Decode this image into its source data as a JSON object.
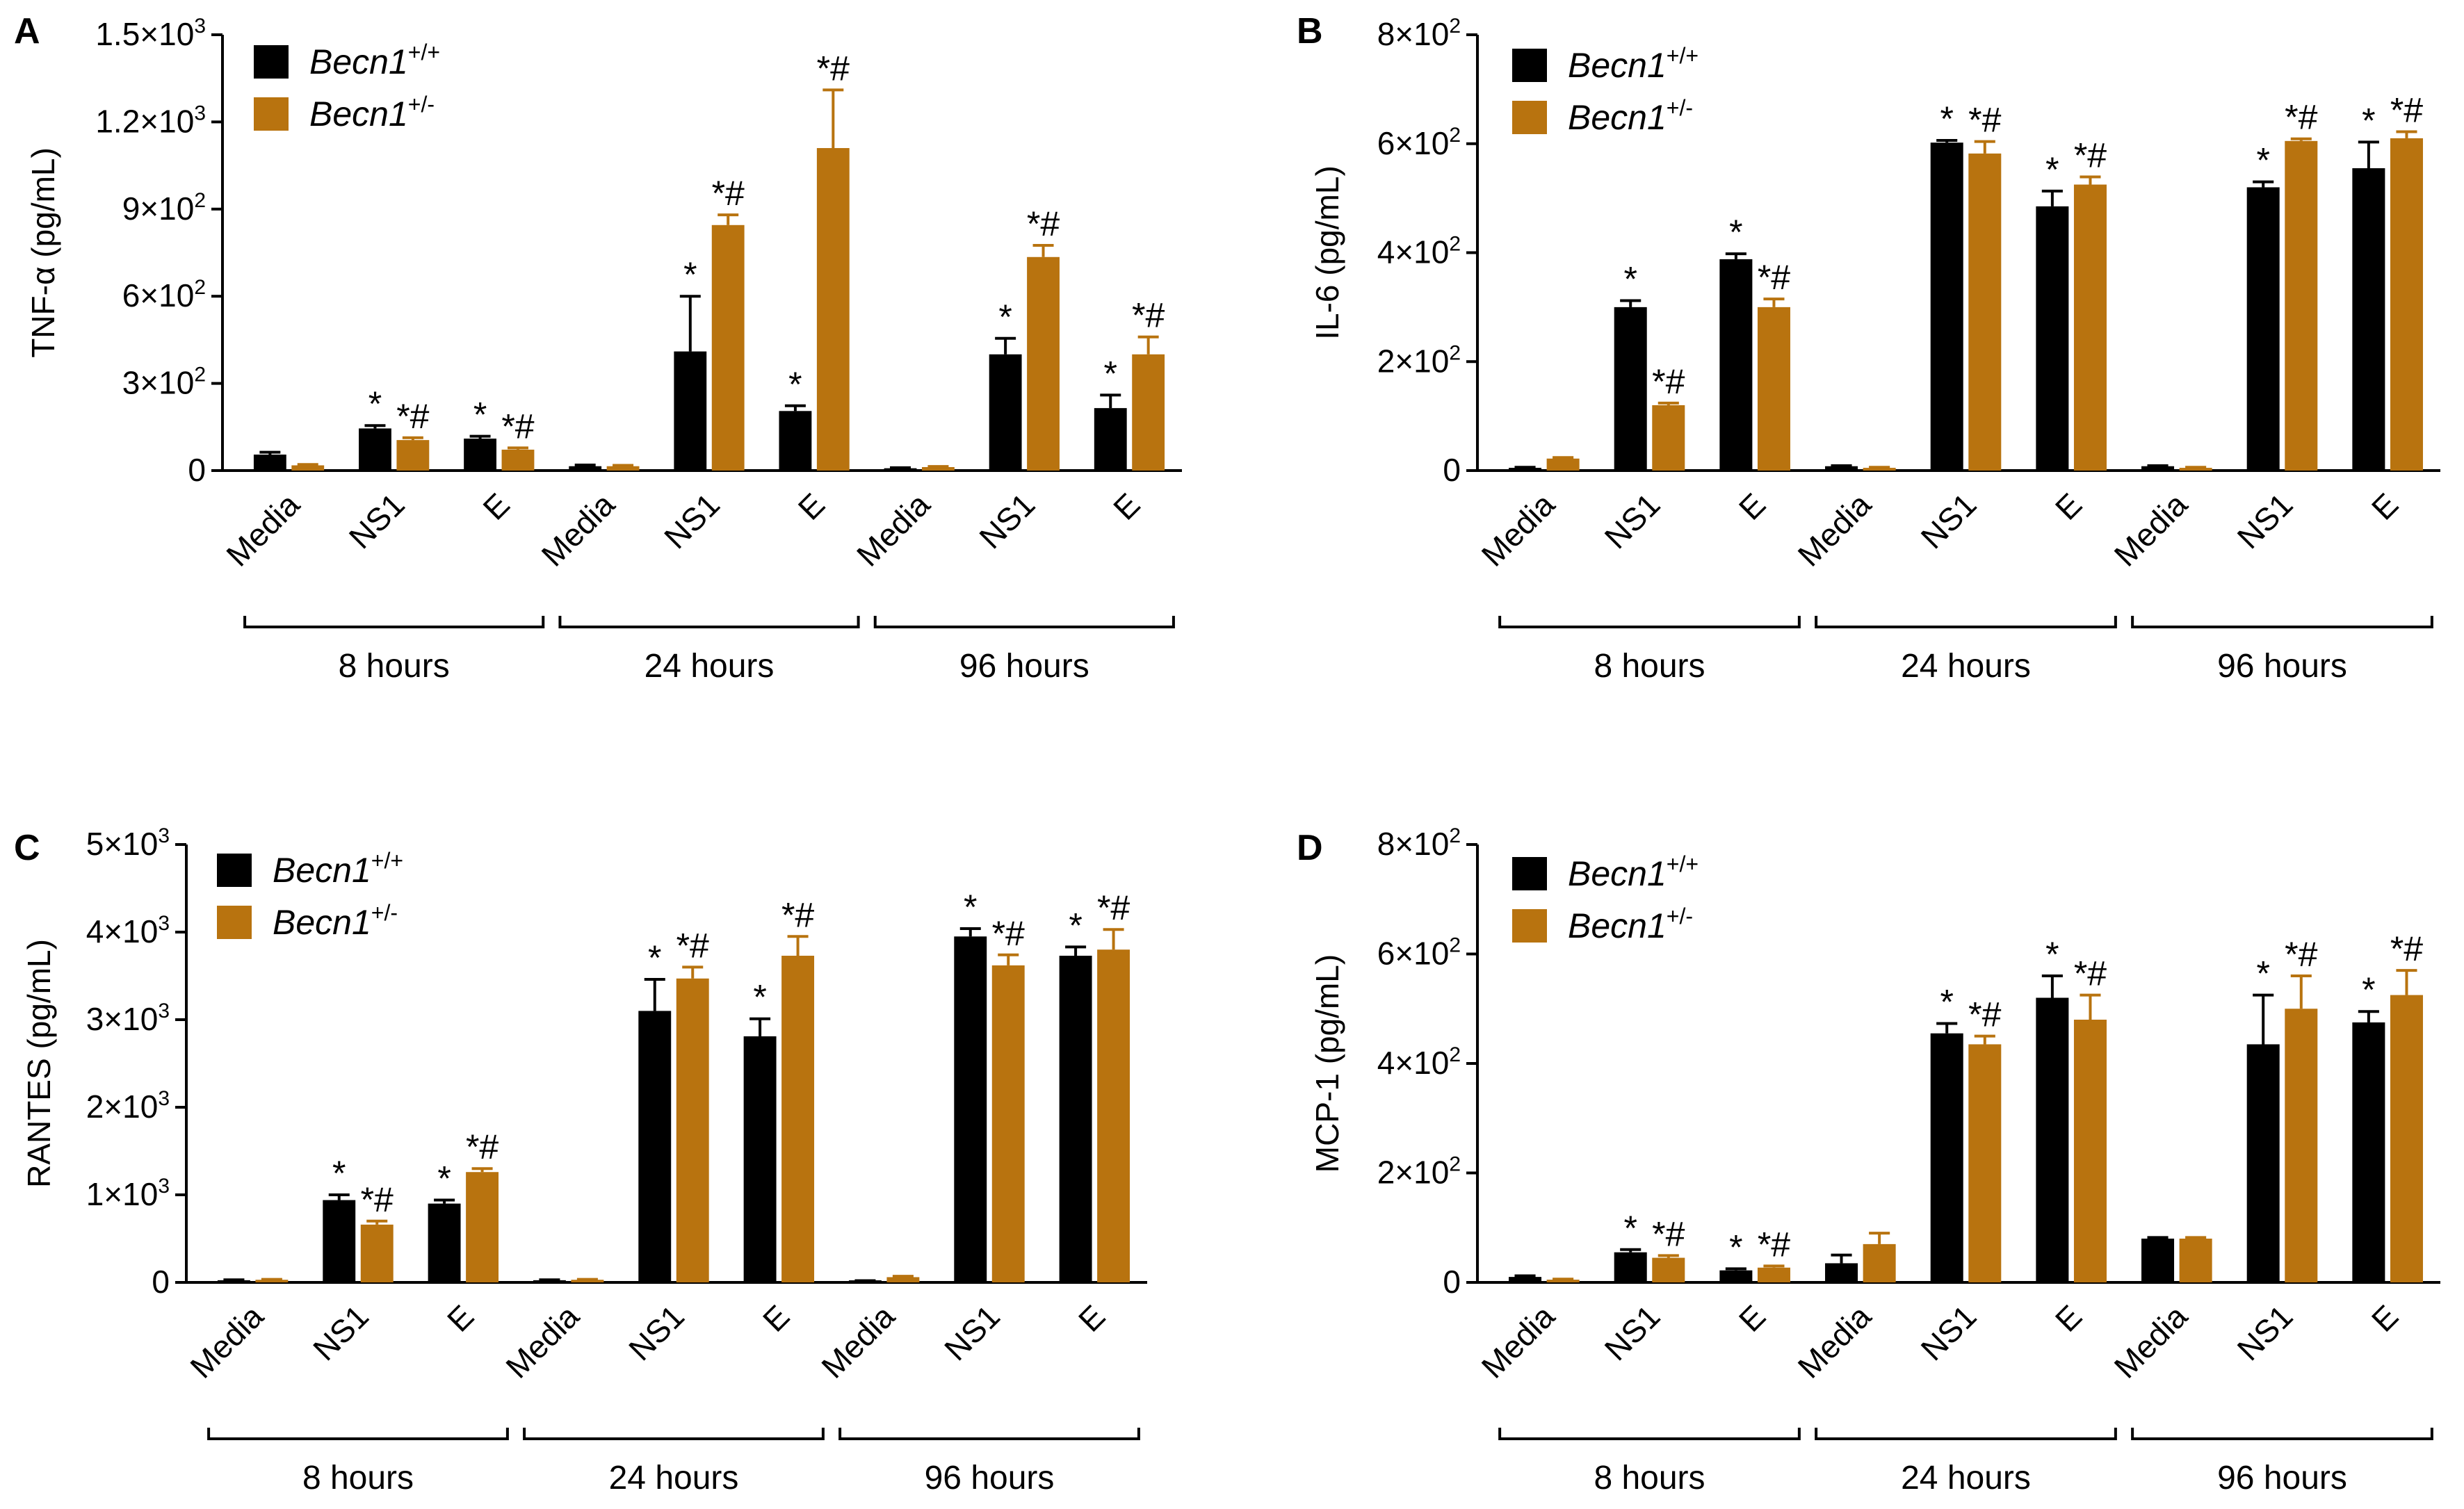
{
  "colors": {
    "wt": "#000000",
    "het": "#B8730F",
    "axis": "#000000"
  },
  "legend": {
    "series": [
      {
        "key": "wt",
        "base": "Becn1",
        "sup": "+/+"
      },
      {
        "key": "het",
        "base": "Becn1",
        "sup": "+/-"
      }
    ]
  },
  "categories": [
    "Media",
    "NS1",
    "E"
  ],
  "groups": [
    "8 hours",
    "24 hours",
    "96 hours"
  ],
  "chart_data": [
    {
      "id": "A",
      "type": "bar",
      "ylabel": "TNF-α (pg/mL)",
      "ylim": [
        0,
        1500
      ],
      "yticks": [
        {
          "value": 0,
          "mantissa": "0",
          "exp": ""
        },
        {
          "value": 300,
          "mantissa": "3×10",
          "exp": "2"
        },
        {
          "value": 600,
          "mantissa": "6×10",
          "exp": "2"
        },
        {
          "value": 900,
          "mantissa": "9×10",
          "exp": "2"
        },
        {
          "value": 1200,
          "mantissa": "1.2×10",
          "exp": "3"
        },
        {
          "value": 1500,
          "mantissa": "1.5×10",
          "exp": "3"
        }
      ],
      "series": [
        {
          "name": "Becn1+/+",
          "values": [
            55,
            145,
            110,
            15,
            410,
            205,
            8,
            400,
            215
          ],
          "errors": [
            8,
            10,
            8,
            4,
            190,
            18,
            2,
            55,
            45
          ],
          "labels": [
            "",
            "*",
            "*",
            "",
            "*",
            "*",
            "",
            "*",
            "*"
          ]
        },
        {
          "name": "Becn1+/-",
          "values": [
            18,
            105,
            72,
            15,
            845,
            1110,
            12,
            735,
            400
          ],
          "errors": [
            3,
            8,
            6,
            3,
            35,
            200,
            2,
            40,
            60
          ],
          "labels": [
            "",
            "*#",
            "*#",
            "",
            "*#",
            "*#",
            "",
            "*#",
            "*#"
          ]
        }
      ]
    },
    {
      "id": "B",
      "type": "bar",
      "ylabel": "IL-6 (pg/mL)",
      "ylim": [
        0,
        800
      ],
      "yticks": [
        {
          "value": 0,
          "mantissa": "0",
          "exp": ""
        },
        {
          "value": 200,
          "mantissa": "2×10",
          "exp": "2"
        },
        {
          "value": 400,
          "mantissa": "4×10",
          "exp": "2"
        },
        {
          "value": 600,
          "mantissa": "6×10",
          "exp": "2"
        },
        {
          "value": 800,
          "mantissa": "8×10",
          "exp": "2"
        }
      ],
      "series": [
        {
          "name": "Becn1+/+",
          "values": [
            5,
            300,
            388,
            8,
            602,
            485,
            8,
            520,
            555
          ],
          "errors": [
            1,
            12,
            10,
            1,
            4,
            28,
            1,
            10,
            48
          ],
          "labels": [
            "",
            "*",
            "*",
            "",
            "*",
            "*",
            "",
            "*",
            "*"
          ]
        },
        {
          "name": "Becn1+/-",
          "values": [
            22,
            120,
            300,
            5,
            582,
            525,
            5,
            605,
            610
          ],
          "errors": [
            2,
            4,
            15,
            1,
            22,
            14,
            1,
            4,
            12
          ],
          "labels": [
            "",
            "*#",
            "*#",
            "",
            "*#",
            "*#",
            "",
            "*#",
            "*#"
          ]
        }
      ]
    },
    {
      "id": "C",
      "type": "bar",
      "ylabel": "RANTES (pg/mL)",
      "ylim": [
        0,
        5000
      ],
      "yticks": [
        {
          "value": 0,
          "mantissa": "0",
          "exp": ""
        },
        {
          "value": 1000,
          "mantissa": "1×10",
          "exp": "3"
        },
        {
          "value": 2000,
          "mantissa": "2×10",
          "exp": "3"
        },
        {
          "value": 3000,
          "mantissa": "3×10",
          "exp": "3"
        },
        {
          "value": 4000,
          "mantissa": "4×10",
          "exp": "3"
        },
        {
          "value": 5000,
          "mantissa": "5×10",
          "exp": "3"
        }
      ],
      "series": [
        {
          "name": "Becn1+/+",
          "values": [
            25,
            940,
            900,
            25,
            3100,
            2810,
            15,
            3950,
            3730
          ],
          "errors": [
            5,
            60,
            40,
            5,
            360,
            200,
            5,
            90,
            100
          ],
          "labels": [
            "",
            "*",
            "*",
            "",
            "*",
            "*",
            "",
            "*",
            "*"
          ]
        },
        {
          "name": "Becn1+/-",
          "values": [
            30,
            660,
            1260,
            30,
            3470,
            3730,
            60,
            3620,
            3800
          ],
          "errors": [
            5,
            40,
            40,
            5,
            130,
            220,
            10,
            120,
            230
          ],
          "labels": [
            "",
            "*#",
            "*#",
            "",
            "*#",
            "*#",
            "",
            "*#",
            "*#"
          ]
        }
      ]
    },
    {
      "id": "D",
      "type": "bar",
      "ylabel": "MCP-1 (pg/mL)",
      "ylim": [
        0,
        800
      ],
      "yticks": [
        {
          "value": 0,
          "mantissa": "0",
          "exp": ""
        },
        {
          "value": 200,
          "mantissa": "2×10",
          "exp": "2"
        },
        {
          "value": 400,
          "mantissa": "4×10",
          "exp": "2"
        },
        {
          "value": 600,
          "mantissa": "6×10",
          "exp": "2"
        },
        {
          "value": 800,
          "mantissa": "8×10",
          "exp": "2"
        }
      ],
      "series": [
        {
          "name": "Becn1+/+",
          "values": [
            10,
            55,
            22,
            35,
            455,
            520,
            80,
            435,
            475
          ],
          "errors": [
            2,
            5,
            3,
            15,
            18,
            40,
            2,
            90,
            20
          ],
          "labels": [
            "",
            "*",
            "*",
            "",
            "*",
            "*",
            "",
            "*",
            "*"
          ]
        },
        {
          "name": "Becn1+/-",
          "values": [
            5,
            45,
            27,
            70,
            435,
            480,
            80,
            500,
            525
          ],
          "errors": [
            1,
            4,
            3,
            20,
            15,
            45,
            2,
            60,
            45
          ],
          "labels": [
            "",
            "*#",
            "*#",
            "",
            "*#",
            "*#",
            "",
            "*#",
            "*#"
          ]
        }
      ]
    }
  ]
}
